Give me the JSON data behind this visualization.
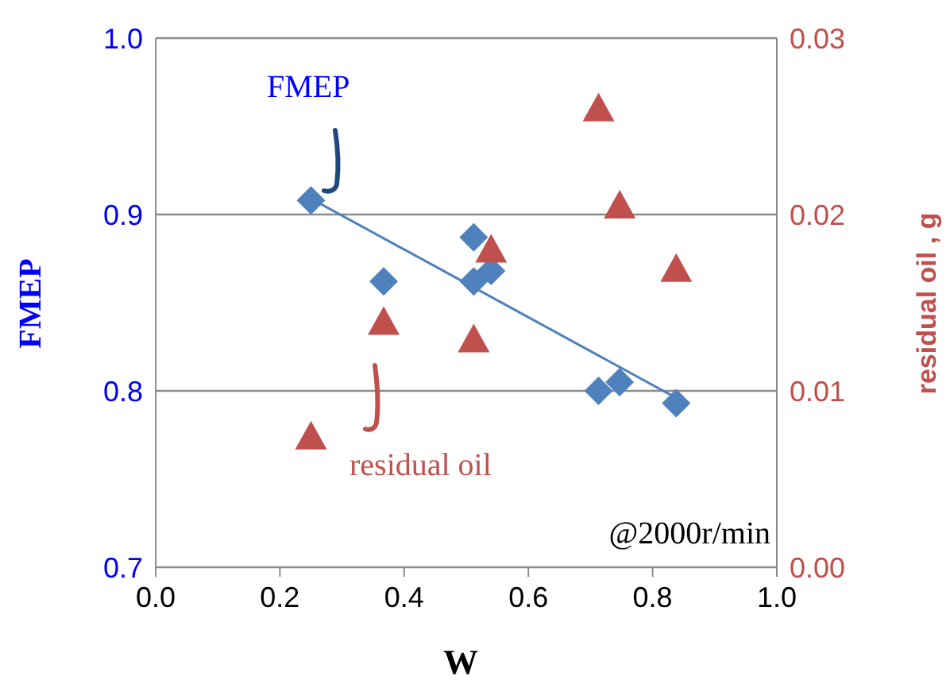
{
  "chart_data": {
    "type": "scatter",
    "xlabel": "W",
    "ylabel": "FMEP",
    "y2label": "residual oil , g",
    "xlim": [
      0,
      1
    ],
    "xticks": [
      {
        "value": 0,
        "label": "0.0"
      },
      {
        "value": 0.2,
        "label": "0.2"
      },
      {
        "value": 0.4,
        "label": "0.4"
      },
      {
        "value": 0.6,
        "label": "0.6"
      },
      {
        "value": 0.8,
        "label": "0.8"
      },
      {
        "value": 1,
        "label": "1.0"
      }
    ],
    "ylim": [
      0.7,
      1.0
    ],
    "yticks": [
      {
        "value": 0.7,
        "label": "0.7"
      },
      {
        "value": 0.8,
        "label": "0.8"
      },
      {
        "value": 0.9,
        "label": "0.9"
      },
      {
        "value": 1.0,
        "label": "1.0"
      }
    ],
    "y2lim": [
      0,
      0.03
    ],
    "y2ticks": [
      {
        "value": 0,
        "label": "0.00"
      },
      {
        "value": 0.01,
        "label": "0.01"
      },
      {
        "value": 0.02,
        "label": "0.02"
      },
      {
        "value": 0.03,
        "label": "0.03"
      }
    ],
    "grid": "y",
    "legend": "left",
    "annotations": [
      "@2000r/min"
    ],
    "series": [
      {
        "name": "FMEP",
        "color": "#4f81bd",
        "marker": "diamond",
        "x": [
          0.25,
          0.367,
          0.512,
          0.512,
          0.54,
          0.713,
          0.747,
          0.838
        ],
        "values": [
          0.908,
          0.862,
          0.887,
          0.862,
          0.868,
          0.8,
          0.805,
          0.793
        ]
      },
      {
        "name": "residual oil",
        "color": "#c0504d",
        "marker": "triangle",
        "axis": "y2",
        "x": [
          0.713,
          0.747,
          0.54,
          0.838,
          0.367,
          0.512,
          0.25
        ],
        "values": [
          0.026,
          0.0205,
          0.018,
          0.0169,
          0.0139,
          0.0129,
          0.0074
        ]
      },
      {
        "type": "line",
        "color": "#4f81bd",
        "marker": "none",
        "x": [
          0.25,
          0.838
        ],
        "values": [
          0.909,
          0.796
        ]
      }
    ]
  }
}
